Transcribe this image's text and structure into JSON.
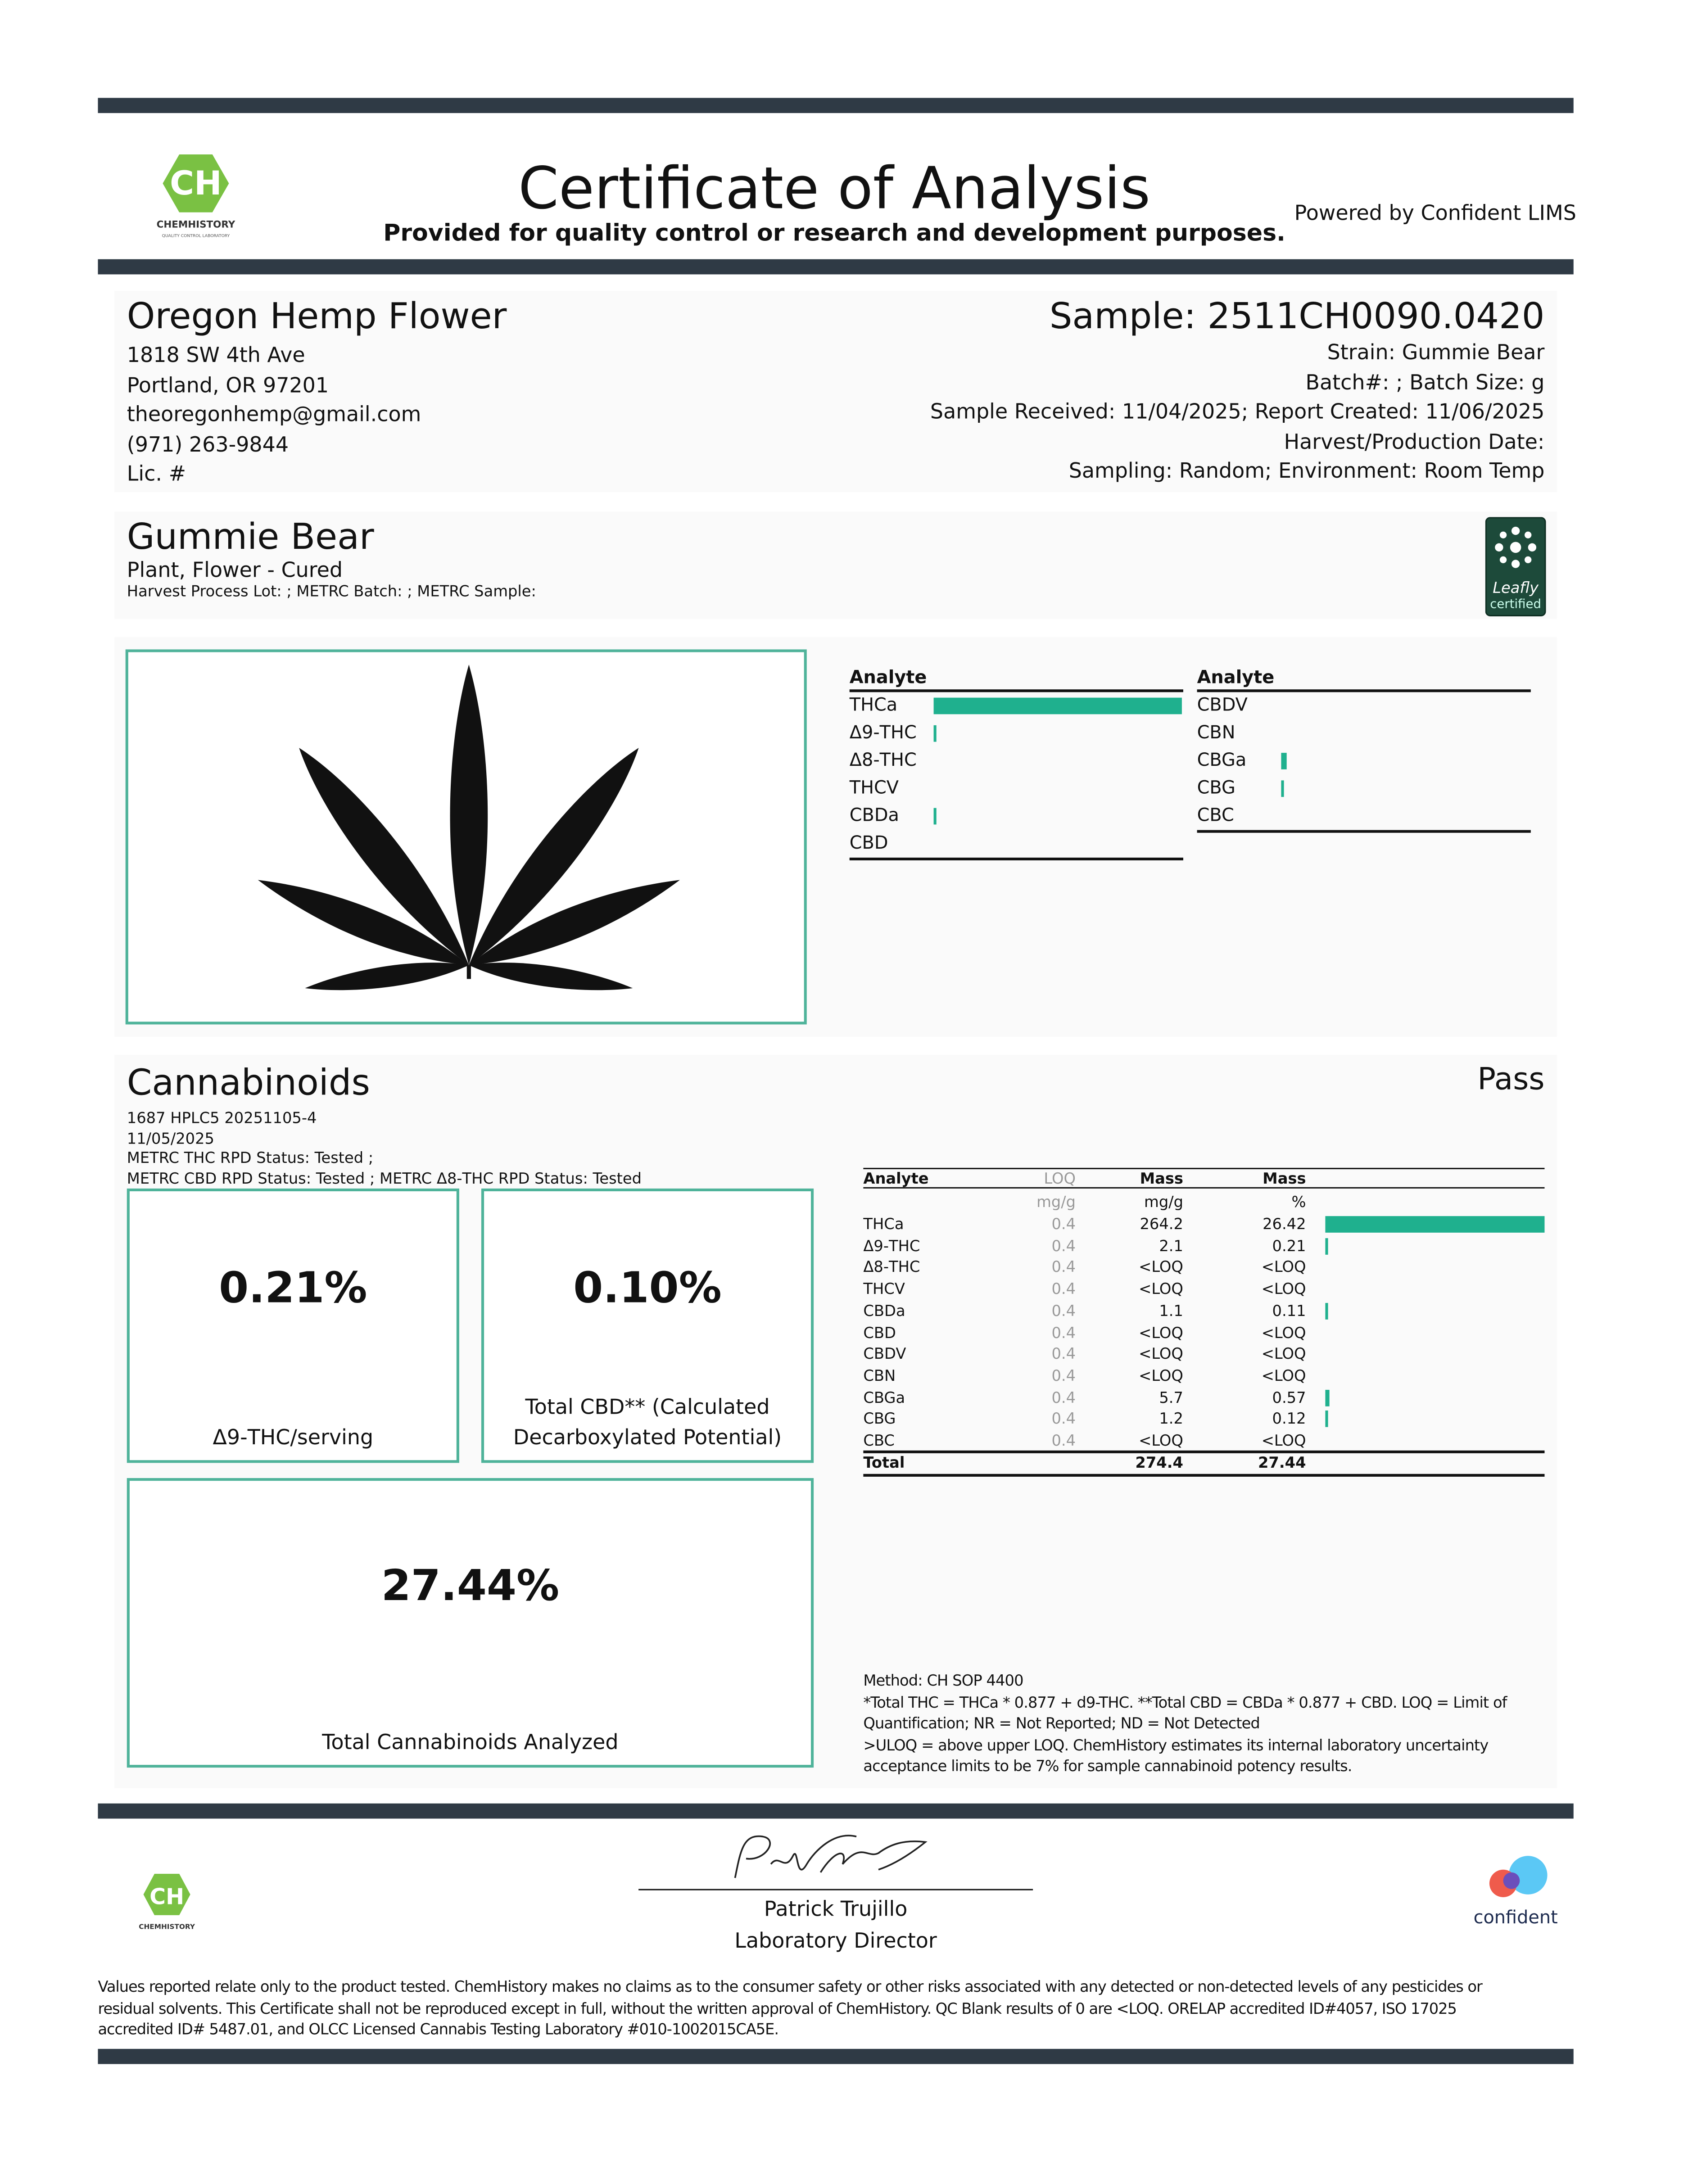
{
  "header": {
    "logo": {
      "initials": "CH",
      "name": "CHEMHISTORY",
      "tagline": "QUALITY CONTROL LABORATORY"
    },
    "title": "Certificate of Analysis",
    "subtitle": "Provided for quality control or research and development purposes.",
    "powered_by": "Powered by Confident LIMS"
  },
  "client": {
    "name": "Oregon Hemp Flower",
    "lines": [
      "1818 SW 4th Ave",
      "Portland, OR 97201",
      "theoregonhemp@gmail.com",
      "(971) 263-9844",
      "Lic. #"
    ]
  },
  "sample": {
    "id": "Sample: 2511CH0090.0420",
    "lines": [
      "Strain: Gummie Bear",
      "Batch#: ; Batch Size:  g",
      "Sample Received: 11/04/2025; Report Created: 11/06/2025",
      "Harvest/Production Date:",
      "Sampling: Random; Environment: Room Temp"
    ]
  },
  "product": {
    "name": "Gummie Bear",
    "type": "Plant, Flower - Cured",
    "lots": "Harvest Process Lot: ; METRC Batch: ; METRC Sample:",
    "badge": {
      "name": "Leafly",
      "sub": "certified"
    }
  },
  "summary": {
    "columns": [
      {
        "header": "Analyte",
        "analytes": [
          "THCa",
          "Δ9-THC",
          "Δ8-THC",
          "THCV",
          "CBDa",
          "CBD"
        ]
      },
      {
        "header": "Analyte",
        "analytes": [
          "CBDV",
          "CBN",
          "CBGa",
          "CBG",
          "CBC"
        ]
      }
    ]
  },
  "cannabinoids": {
    "title": "Cannabinoids",
    "status": "Pass",
    "meta": [
      "1687 HPLC5 20251105-4",
      "11/05/2025",
      "METRC THC RPD Status: Tested ;",
      "METRC CBD RPD Status: Tested ; METRC Δ8-THC RPD Status: Tested"
    ],
    "boxes": [
      {
        "value": "0.21%",
        "label": [
          "Δ9-THC/serving"
        ]
      },
      {
        "value": "0.10%",
        "label": [
          "Total CBD** (Calculated",
          "Decarboxylated Potential)"
        ]
      },
      {
        "value": "27.44%",
        "label": [
          "Total Cannabinoids Analyzed"
        ]
      }
    ],
    "table": {
      "headers": {
        "analyte": "Analyte",
        "loq": "LOQ",
        "mass": "Mass",
        "percent": "Mass"
      },
      "units": {
        "loq": "mg/g",
        "mass": "mg/g",
        "percent": "%"
      },
      "rows": [
        [
          "THCa",
          0.4,
          264.2,
          26.42
        ],
        [
          "Δ9-THC",
          0.4,
          2.1,
          0.21
        ],
        [
          "Δ8-THC",
          0.4,
          "<LOQ",
          "<LOQ"
        ],
        [
          "THCV",
          0.4,
          "<LOQ",
          "<LOQ"
        ],
        [
          "CBDa",
          0.4,
          1.1,
          0.11
        ],
        [
          "CBD",
          0.4,
          "<LOQ",
          "<LOQ"
        ],
        [
          "CBDV",
          0.4,
          "<LOQ",
          "<LOQ"
        ],
        [
          "CBN",
          0.4,
          "<LOQ",
          "<LOQ"
        ],
        [
          "CBGa",
          0.4,
          5.7,
          0.57
        ],
        [
          "CBG",
          0.4,
          1.2,
          0.12
        ],
        [
          "CBC",
          0.4,
          "<LOQ",
          "<LOQ"
        ]
      ],
      "total": {
        "label": "Total",
        "mass": 274.4,
        "percent": 27.44
      }
    },
    "notes": [
      "Method: CH SOP 4400",
      "*Total THC = THCa * 0.877 + d9-THC. **Total CBD = CBDa * 0.877 + CBD. LOQ = Limit of",
      "Quantification; NR = Not Reported; ND = Not Detected",
      ">ULOQ = above upper LOQ. ChemHistory estimates its internal laboratory uncertainty",
      "acceptance limits to be 7% for sample cannabinoid potency results."
    ]
  },
  "signature": {
    "name": "Patrick Trujillo",
    "title": "Laboratory Director"
  },
  "confident_logo": "confident",
  "footer": [
    "Values reported relate only to the product tested. ChemHistory makes no claims as to the consumer safety or other risks associated with any detected or non-detected levels of any pesticides or",
    "residual solvents. This Certificate shall not be reproduced except in full, without the written approval of ChemHistory. QC Blank results of 0 are <LOQ.  ORELAP accredited ID#4057, ISO 17025",
    "accredited ID# 5487.01, and OLCC Licensed Cannabis Testing Laboratory #010-1002015CA5E."
  ]
}
